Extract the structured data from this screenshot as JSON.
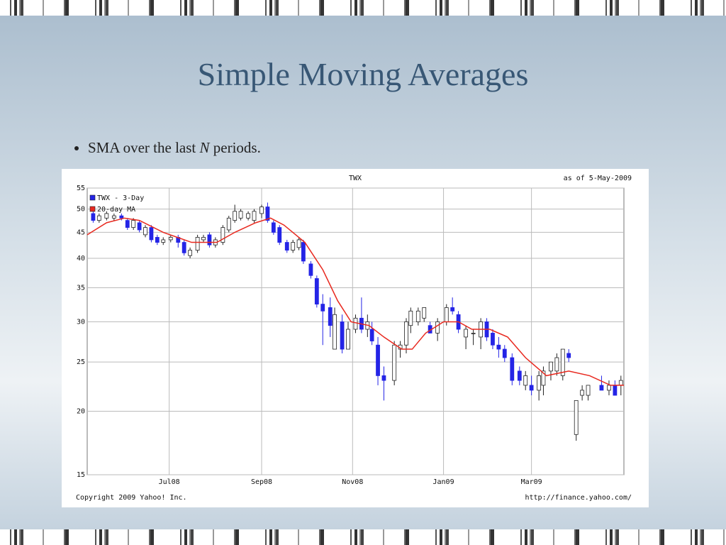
{
  "slide": {
    "title": "Simple Moving Averages",
    "bullet": {
      "text_before": "SMA over the last",
      "emphasis": "N",
      "text_after": "periods."
    }
  },
  "chart_data": {
    "type": "candlestick",
    "title": "TWX",
    "subtitle": "as of  5-May-2009",
    "footer_left": "Copyright 2009 Yahoo! Inc.",
    "footer_right": "http://finance.yahoo.com/",
    "log_scale": true,
    "grid": true,
    "legend": "top-left",
    "ylim": [
      15,
      55
    ],
    "yticks": [
      15,
      20,
      25,
      30,
      35,
      40,
      45,
      50,
      55
    ],
    "xlim": [
      -55,
      305
    ],
    "xticks": [
      {
        "value": 0,
        "label": "Jul08"
      },
      {
        "value": 62,
        "label": "Sep08"
      },
      {
        "value": 123,
        "label": "Nov08"
      },
      {
        "value": 184,
        "label": "Jan09"
      },
      {
        "value": 243,
        "label": "Mar09"
      }
    ],
    "series": [
      {
        "name": "TWX - 3-Day",
        "color": "#2424e6",
        "up_color": "#ffffff",
        "x": [
          -51,
          -47,
          -42,
          -37,
          -32,
          -28,
          -24,
          -20,
          -16,
          -12,
          -8,
          -4,
          1,
          6,
          10,
          14,
          19,
          23,
          27,
          31,
          36,
          40,
          44,
          48,
          53,
          57,
          62,
          66,
          70,
          74,
          79,
          83,
          87,
          90,
          95,
          99,
          103,
          108,
          111,
          116,
          120,
          125,
          129,
          133,
          136,
          140,
          144,
          151,
          155,
          159,
          162,
          167,
          171,
          175,
          180,
          186,
          190,
          194,
          199,
          204,
          209,
          213,
          217,
          221,
          225,
          230,
          235,
          239,
          243,
          248,
          251,
          256,
          260,
          264,
          268,
          273,
          277,
          281,
          290,
          295,
          299,
          303
        ],
        "open": [
          49,
          47.5,
          48,
          48,
          48.5,
          47.5,
          46,
          47,
          44.5,
          46,
          44,
          43,
          43.5,
          44,
          43,
          40.5,
          41.5,
          43.5,
          44.5,
          42.5,
          43,
          45.5,
          47.5,
          48,
          48,
          47.5,
          49,
          50.5,
          47,
          46,
          43,
          41.5,
          42,
          43,
          39,
          36.5,
          32.5,
          32,
          26.5,
          30,
          26.5,
          29,
          30.5,
          29,
          29,
          27,
          23.5,
          23,
          26.5,
          27,
          29.5,
          30,
          30.5,
          29.5,
          28.5,
          30,
          32,
          31,
          28,
          28.5,
          28,
          30,
          28.5,
          27,
          26.5,
          25.5,
          24,
          22.5,
          22.5,
          22,
          22.5,
          24,
          24,
          23.5,
          26,
          18,
          21.5,
          21.5,
          22.5,
          22,
          22.5,
          22.5
        ],
        "high": [
          49.5,
          49,
          49.5,
          49,
          49,
          48,
          48,
          47.5,
          46.5,
          46.5,
          44.5,
          44,
          44.5,
          44.5,
          43.5,
          42,
          44.5,
          44.5,
          45,
          44,
          46.5,
          48.5,
          51,
          50,
          49.5,
          50,
          51,
          51.5,
          47.5,
          46.5,
          43.5,
          43.5,
          44,
          43.5,
          39.5,
          37,
          34,
          33.5,
          32,
          31,
          30,
          31,
          33.5,
          31,
          30,
          28,
          24.5,
          27.5,
          27.5,
          30.5,
          32,
          32,
          32,
          30,
          30.5,
          32.5,
          33.5,
          31.5,
          29.5,
          29,
          30.5,
          30.5,
          29,
          28,
          27,
          26,
          24.5,
          24,
          23.5,
          24,
          24.5,
          25,
          26,
          26.5,
          26.5,
          21,
          22.5,
          22.5,
          23.5,
          23,
          23,
          23.5
        ],
        "low": [
          47,
          47,
          47.5,
          47.5,
          47.5,
          45.5,
          45.5,
          45,
          44,
          43,
          42.5,
          42.5,
          43,
          42,
          40.5,
          40,
          41,
          43,
          42,
          42,
          42.5,
          45,
          47,
          47.5,
          47.5,
          47,
          48,
          47,
          44.5,
          42.5,
          41,
          41,
          41.5,
          39,
          36.5,
          32,
          27,
          28,
          26.5,
          26,
          26.5,
          28.5,
          28.5,
          28,
          27,
          22.5,
          21,
          22.5,
          25.5,
          26,
          28.5,
          29.5,
          30,
          28.5,
          27.5,
          29.5,
          31,
          28.5,
          26.5,
          27,
          26.5,
          27.5,
          26.5,
          25.5,
          25,
          22.5,
          22.5,
          22,
          21.5,
          21,
          21.5,
          23,
          23.5,
          23,
          25,
          17.5,
          21,
          21,
          22,
          21.5,
          21.5,
          21.5
        ],
        "close": [
          47.5,
          48.5,
          49,
          48.5,
          48,
          46,
          47.5,
          45.5,
          46,
          43.5,
          43,
          43.5,
          44,
          43,
          41,
          41.5,
          44,
          44,
          42.5,
          43.5,
          46,
          48,
          49.5,
          49.5,
          49,
          49.5,
          50.5,
          47.5,
          45,
          43,
          41.5,
          43,
          43.5,
          39.5,
          37,
          32.5,
          31.5,
          29.5,
          31,
          26.5,
          29,
          30.5,
          29,
          30,
          27.5,
          23.5,
          23,
          27,
          27,
          30,
          31.5,
          31.5,
          32,
          28.5,
          30,
          32,
          31.5,
          29,
          29,
          28.5,
          30,
          28,
          27,
          26.5,
          25.5,
          23,
          23,
          23.5,
          22,
          23.5,
          24,
          25,
          25.5,
          26.5,
          25.5,
          21,
          22,
          22.5,
          22,
          22.5,
          21.5,
          23
        ]
      },
      {
        "name": "20-day MA",
        "color": "#e8281e",
        "x": [
          -55,
          -42,
          -30,
          -20,
          -4,
          15,
          32,
          44,
          58,
          68,
          77,
          91,
          103,
          113,
          122,
          134,
          144,
          156,
          163,
          172,
          184,
          194,
          203,
          215,
          227,
          239,
          253,
          268,
          282,
          296,
          305
        ],
        "values": [
          44.5,
          47,
          48,
          47.5,
          45,
          43,
          43,
          45,
          47,
          48,
          46.5,
          43,
          38,
          33,
          30,
          29.5,
          28,
          26.5,
          26.5,
          28.5,
          30,
          30,
          29,
          29,
          28,
          25.5,
          23.5,
          24,
          23.5,
          22.5,
          22.5
        ]
      }
    ]
  }
}
